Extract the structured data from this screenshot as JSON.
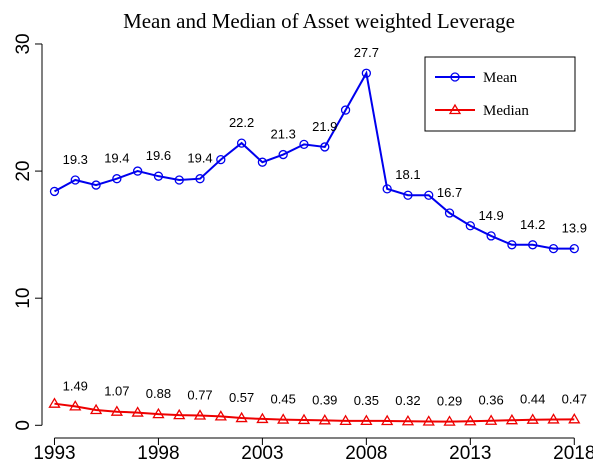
{
  "chart_data": {
    "type": "line",
    "title": "Mean and Median of Asset weighted Leverage",
    "x": [
      1993,
      1994,
      1995,
      1996,
      1997,
      1998,
      1999,
      2000,
      2001,
      2002,
      2003,
      2004,
      2005,
      2006,
      2007,
      2008,
      2009,
      2010,
      2011,
      2012,
      2013,
      2014,
      2015,
      2016,
      2017,
      2018
    ],
    "series": [
      {
        "name": "Mean",
        "color": "#0000ee",
        "marker": "circle",
        "values": [
          18.4,
          19.3,
          18.9,
          19.4,
          20.0,
          19.6,
          19.3,
          19.4,
          20.9,
          22.2,
          20.7,
          21.3,
          22.1,
          21.9,
          24.8,
          27.7,
          18.6,
          18.1,
          18.1,
          16.7,
          15.7,
          14.9,
          14.2,
          14.2,
          13.9,
          13.9
        ],
        "value_labels": [
          null,
          "19.3",
          null,
          "19.4",
          null,
          "19.6",
          null,
          "19.4",
          null,
          "22.2",
          null,
          "21.3",
          null,
          "21.9",
          null,
          "27.7",
          null,
          "18.1",
          null,
          "16.7",
          null,
          "14.9",
          null,
          "14.2",
          null,
          "13.9"
        ]
      },
      {
        "name": "Median",
        "color": "#ee0000",
        "marker": "triangle",
        "values": [
          1.7,
          1.49,
          1.2,
          1.07,
          1.0,
          0.88,
          0.8,
          0.77,
          0.7,
          0.57,
          0.5,
          0.45,
          0.42,
          0.39,
          0.35,
          0.35,
          0.34,
          0.32,
          0.3,
          0.29,
          0.32,
          0.36,
          0.4,
          0.44,
          0.46,
          0.47
        ],
        "value_labels": [
          null,
          "1.49",
          null,
          "1.07",
          null,
          "0.88",
          null,
          "0.77",
          null,
          "0.57",
          null,
          "0.45",
          null,
          "0.39",
          null,
          "0.35",
          null,
          "0.32",
          null,
          "0.29",
          null,
          "0.36",
          null,
          "0.44",
          null,
          "0.47"
        ]
      }
    ],
    "xlim": [
      1992.4,
      2018.9
    ],
    "xticks": [
      1993,
      1998,
      2003,
      2008,
      2013,
      2018
    ],
    "ylim": [
      -1,
      31.1
    ],
    "yticks": [
      0,
      10,
      20,
      30
    ],
    "legend": "topright"
  }
}
